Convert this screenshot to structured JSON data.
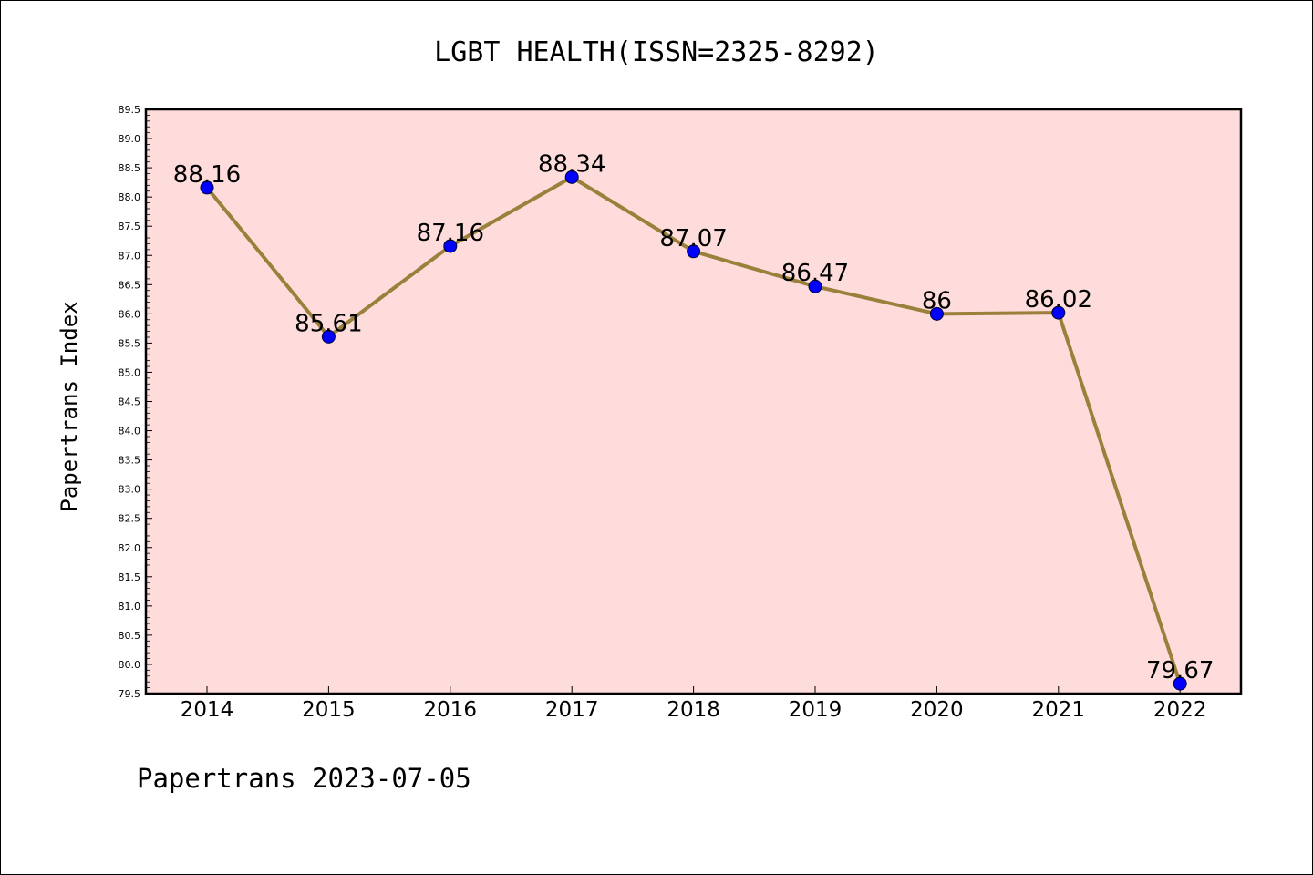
{
  "chart_data": {
    "type": "line",
    "title": "LGBT HEALTH(ISSN=2325-8292)",
    "xlabel": "",
    "ylabel": "Papertrans Index",
    "categories": [
      "2014",
      "2015",
      "2016",
      "2017",
      "2018",
      "2019",
      "2020",
      "2021",
      "2022"
    ],
    "values": [
      88.16,
      85.61,
      87.16,
      88.34,
      87.07,
      86.47,
      86,
      86.02,
      79.67
    ],
    "data_labels": [
      "88.16",
      "85.61",
      "87.16",
      "88.34",
      "87.07",
      "86.47",
      "86",
      "86.02",
      "79.67"
    ],
    "ylim": [
      79.5,
      89.5
    ],
    "yticks": [
      "79.5",
      "80.0",
      "80.5",
      "81.0",
      "81.5",
      "82.0",
      "82.5",
      "83.0",
      "83.5",
      "84.0",
      "84.5",
      "85.0",
      "85.5",
      "86.0",
      "86.5",
      "87.0",
      "87.5",
      "88.0",
      "88.5",
      "89.0",
      "89.5"
    ],
    "grid": false,
    "legend": "none",
    "colors": {
      "plot_background": "#fddcdb",
      "line": "#9a803a",
      "marker": "#0000ff",
      "marker_edge": "#000033"
    }
  },
  "footer": {
    "text": "Papertrans 2023-07-05"
  }
}
